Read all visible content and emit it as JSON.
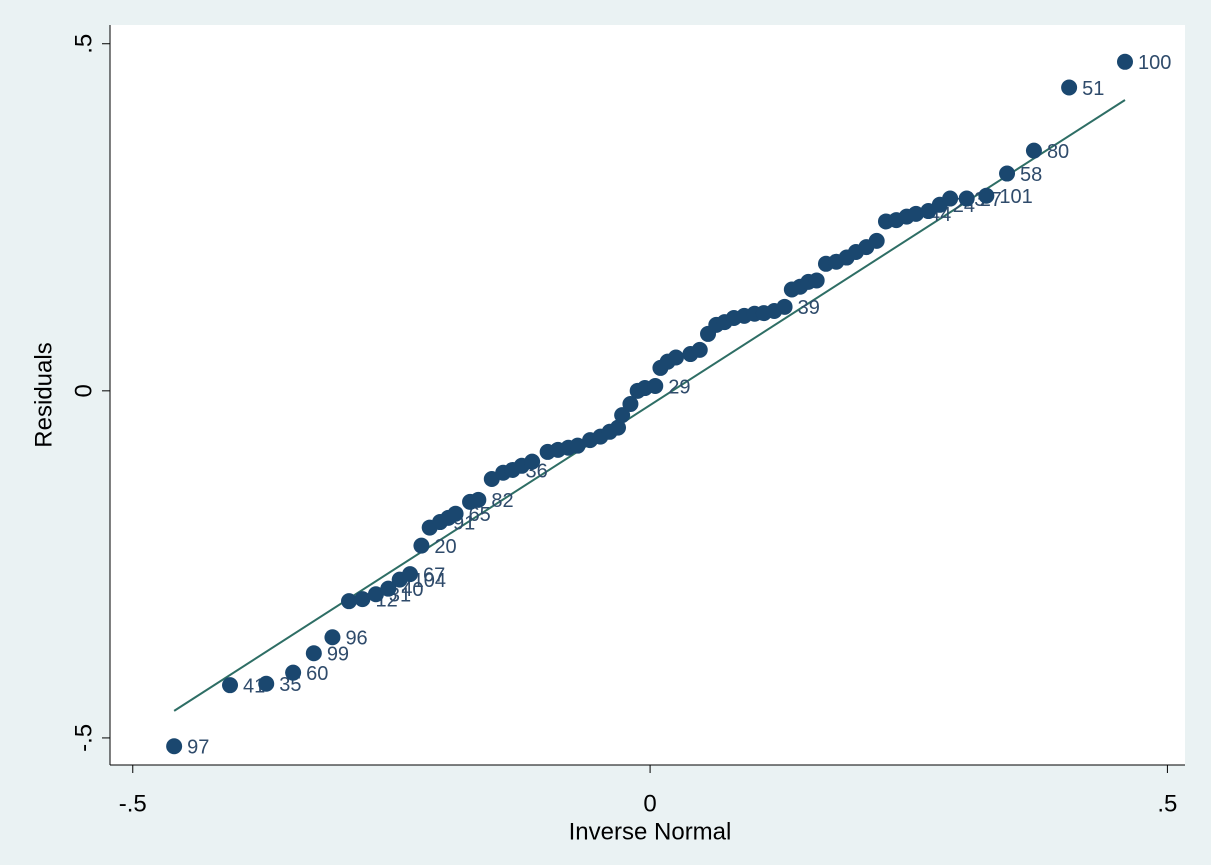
{
  "chart_data": {
    "type": "scatter",
    "x_label": "Inverse Normal",
    "y_label": "Residuals",
    "xlim": [
      -0.522,
      0.517
    ],
    "ylim": [
      -0.539,
      0.527
    ],
    "xticks": [
      {
        "value": -0.5,
        "label": "-.5"
      },
      0,
      {
        "value": 0.5,
        "label": ".5"
      }
    ],
    "yticks": [
      {
        "value": -0.5,
        "label": "-.5"
      },
      0,
      {
        "value": 0.5,
        "label": ".5"
      }
    ],
    "color": "#1a476f",
    "line_color": "#2e6e65",
    "fit_line": {
      "x": [
        -0.46,
        0.459
      ],
      "y": [
        -0.461,
        0.419
      ]
    },
    "x": [
      -0.46,
      -0.406,
      -0.371,
      -0.345,
      -0.325,
      -0.307,
      -0.291,
      -0.278,
      -0.265,
      -0.253,
      -0.242,
      -0.232,
      -0.221,
      -0.213,
      -0.203,
      -0.195,
      -0.188,
      -0.174,
      -0.166,
      -0.153,
      -0.142,
      -0.133,
      -0.124,
      -0.114,
      -0.099,
      -0.089,
      -0.079,
      -0.07,
      -0.058,
      -0.048,
      -0.039,
      -0.031,
      -0.027,
      -0.019,
      -0.012,
      -0.005,
      0.005,
      0.01,
      0.017,
      0.025,
      0.039,
      0.048,
      0.056,
      0.064,
      0.072,
      0.081,
      0.091,
      0.101,
      0.11,
      0.12,
      0.13,
      0.137,
      0.145,
      0.153,
      0.161,
      0.17,
      0.18,
      0.19,
      0.199,
      0.209,
      0.219,
      0.228,
      0.238,
      0.248,
      0.257,
      0.269,
      0.28,
      0.29,
      0.306,
      0.325,
      0.345,
      0.371,
      0.405,
      0.459
    ],
    "y": [
      -0.512,
      -0.424,
      -0.422,
      -0.406,
      -0.378,
      -0.355,
      -0.303,
      -0.3,
      -0.293,
      -0.285,
      -0.272,
      -0.264,
      -0.223,
      -0.197,
      -0.189,
      -0.183,
      -0.177,
      -0.16,
      -0.157,
      -0.127,
      -0.118,
      -0.114,
      -0.108,
      -0.102,
      -0.088,
      -0.085,
      -0.082,
      -0.079,
      -0.071,
      -0.066,
      -0.059,
      -0.053,
      -0.035,
      -0.019,
      0.0,
      0.004,
      0.007,
      0.033,
      0.042,
      0.048,
      0.053,
      0.059,
      0.082,
      0.095,
      0.099,
      0.105,
      0.108,
      0.111,
      0.112,
      0.115,
      0.121,
      0.146,
      0.15,
      0.157,
      0.159,
      0.183,
      0.186,
      0.192,
      0.2,
      0.207,
      0.216,
      0.244,
      0.246,
      0.251,
      0.255,
      0.259,
      0.268,
      0.277,
      0.277,
      0.281,
      0.313,
      0.346,
      0.437,
      0.474
    ],
    "labels": [
      "97",
      "41",
      "35",
      "60",
      "99",
      "96",
      null,
      "12",
      "31",
      "40",
      "104",
      "67",
      "20",
      null,
      "91",
      null,
      "65",
      null,
      "82",
      null,
      null,
      "36",
      null,
      null,
      null,
      null,
      null,
      null,
      null,
      null,
      null,
      null,
      null,
      null,
      null,
      null,
      "29",
      null,
      null,
      null,
      null,
      null,
      null,
      null,
      null,
      null,
      null,
      null,
      null,
      null,
      "39",
      null,
      null,
      null,
      null,
      null,
      null,
      null,
      null,
      null,
      null,
      null,
      null,
      null,
      "44",
      null,
      "24",
      "43",
      "27",
      "101",
      "58",
      "80",
      "51",
      "100"
    ]
  }
}
